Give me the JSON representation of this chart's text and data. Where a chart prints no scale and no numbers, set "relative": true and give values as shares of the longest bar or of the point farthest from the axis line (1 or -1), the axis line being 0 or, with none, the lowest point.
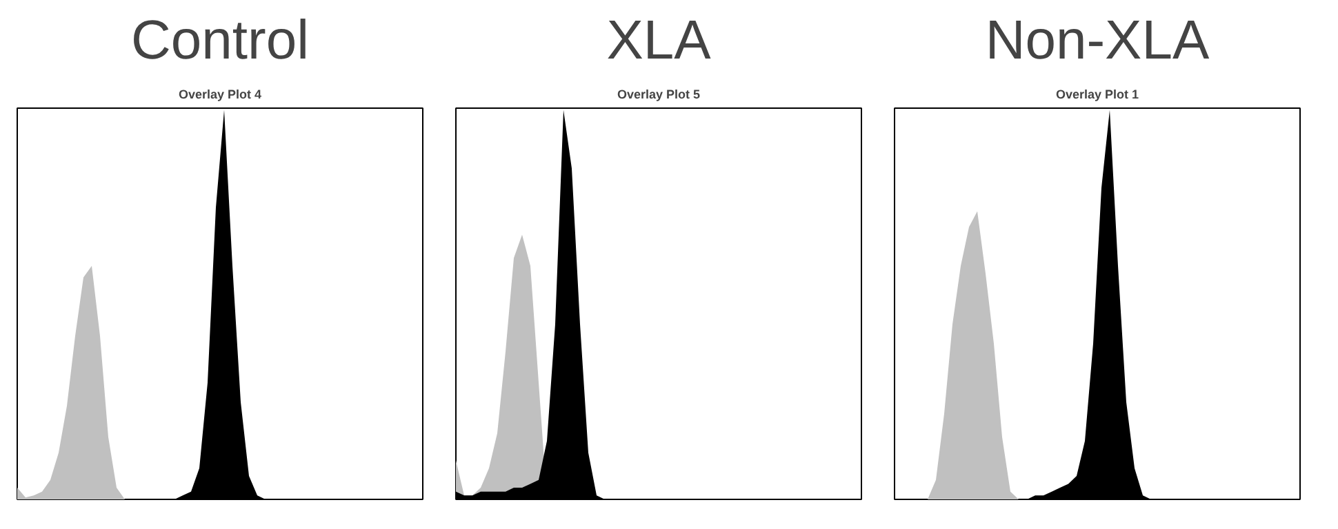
{
  "chart_data": [
    {
      "type": "area",
      "title": "Control",
      "subtitle": "Overlay Plot 4",
      "relative": true,
      "categories": [
        null,
        null,
        null,
        null,
        null,
        null,
        null,
        null,
        null,
        null,
        null,
        null,
        null,
        null,
        null,
        null,
        null,
        null,
        null,
        null,
        null,
        null,
        null,
        null,
        null,
        null,
        null,
        null,
        null,
        null,
        null,
        null,
        null,
        null,
        null,
        null,
        null,
        null,
        null,
        null,
        null,
        null,
        null,
        null,
        null,
        null,
        null,
        null,
        null,
        null
      ],
      "series": [
        {
          "color": "#c0c0c0",
          "values": [
            0.03,
            0.005,
            0.01,
            0.02,
            0.05,
            0.12,
            0.24,
            0.42,
            0.57,
            0.6,
            0.42,
            0.16,
            0.03,
            0,
            0,
            0,
            0,
            0,
            0,
            0,
            0,
            0,
            0,
            0,
            0,
            0,
            0,
            0,
            0,
            0,
            0,
            0,
            0,
            0,
            0,
            0,
            0,
            0,
            0,
            0,
            0,
            0,
            0,
            0,
            0,
            0,
            0,
            0,
            0,
            0
          ]
        },
        {
          "color": "#000000",
          "values": [
            0,
            0,
            0,
            0,
            0,
            0,
            0,
            0,
            0,
            0,
            0,
            0,
            0,
            0,
            0,
            0,
            0,
            0,
            0,
            0,
            0.01,
            0.02,
            0.08,
            0.3,
            0.75,
            1.0,
            0.6,
            0.25,
            0.06,
            0.01,
            0,
            0,
            0,
            0,
            0,
            0,
            0,
            0,
            0,
            0,
            0,
            0,
            0,
            0,
            0,
            0,
            0,
            0,
            0,
            0
          ]
        }
      ]
    },
    {
      "type": "area",
      "title": "XLA",
      "subtitle": "Overlay Plot 5",
      "relative": true,
      "categories": [
        null,
        null,
        null,
        null,
        null,
        null,
        null,
        null,
        null,
        null,
        null,
        null,
        null,
        null,
        null,
        null,
        null,
        null,
        null,
        null,
        null,
        null,
        null,
        null,
        null,
        null,
        null,
        null,
        null,
        null,
        null,
        null,
        null,
        null,
        null,
        null,
        null,
        null,
        null,
        null,
        null,
        null,
        null,
        null,
        null,
        null,
        null,
        null,
        null,
        null
      ],
      "series": [
        {
          "color": "#c0c0c0",
          "values": [
            0.1,
            0.01,
            0.01,
            0.03,
            0.08,
            0.17,
            0.38,
            0.62,
            0.68,
            0.6,
            0.3,
            0,
            0,
            0,
            0,
            0,
            0,
            0,
            0,
            0,
            0,
            0,
            0,
            0,
            0,
            0,
            0,
            0,
            0,
            0,
            0,
            0,
            0,
            0,
            0,
            0,
            0,
            0,
            0,
            0,
            0,
            0,
            0,
            0,
            0,
            0,
            0,
            0,
            0,
            0
          ]
        },
        {
          "color": "#000000",
          "values": [
            0.02,
            0.01,
            0.01,
            0.02,
            0.02,
            0.02,
            0.02,
            0.03,
            0.03,
            0.04,
            0.05,
            0.15,
            0.45,
            1.0,
            0.85,
            0.45,
            0.12,
            0.01,
            0,
            0,
            0,
            0,
            0,
            0,
            0,
            0,
            0,
            0,
            0,
            0,
            0,
            0,
            0,
            0,
            0,
            0,
            0,
            0,
            0,
            0,
            0,
            0,
            0,
            0,
            0,
            0,
            0,
            0,
            0,
            0
          ]
        }
      ]
    },
    {
      "type": "area",
      "title": "Non-XLA",
      "subtitle": "Overlay Plot 1",
      "relative": true,
      "categories": [
        null,
        null,
        null,
        null,
        null,
        null,
        null,
        null,
        null,
        null,
        null,
        null,
        null,
        null,
        null,
        null,
        null,
        null,
        null,
        null,
        null,
        null,
        null,
        null,
        null,
        null,
        null,
        null,
        null,
        null,
        null,
        null,
        null,
        null,
        null,
        null,
        null,
        null,
        null,
        null,
        null,
        null,
        null,
        null,
        null,
        null,
        null,
        null,
        null,
        null
      ],
      "series": [
        {
          "color": "#c0c0c0",
          "values": [
            0,
            0,
            0,
            0,
            0,
            0.05,
            0.22,
            0.45,
            0.6,
            0.7,
            0.74,
            0.58,
            0.4,
            0.16,
            0.02,
            0,
            0,
            0,
            0,
            0,
            0,
            0,
            0,
            0,
            0,
            0,
            0,
            0,
            0,
            0,
            0,
            0,
            0,
            0,
            0,
            0,
            0,
            0,
            0,
            0,
            0,
            0,
            0,
            0,
            0,
            0,
            0,
            0,
            0,
            0
          ]
        },
        {
          "color": "#000000",
          "values": [
            0,
            0,
            0,
            0,
            0,
            0,
            0,
            0,
            0,
            0,
            0,
            0,
            0,
            0,
            0,
            0,
            0,
            0.01,
            0.01,
            0.02,
            0.03,
            0.04,
            0.06,
            0.15,
            0.4,
            0.8,
            1.0,
            0.6,
            0.25,
            0.08,
            0.01,
            0,
            0,
            0,
            0,
            0,
            0,
            0,
            0,
            0,
            0,
            0,
            0,
            0,
            0,
            0,
            0,
            0,
            0,
            0
          ]
        }
      ]
    }
  ]
}
